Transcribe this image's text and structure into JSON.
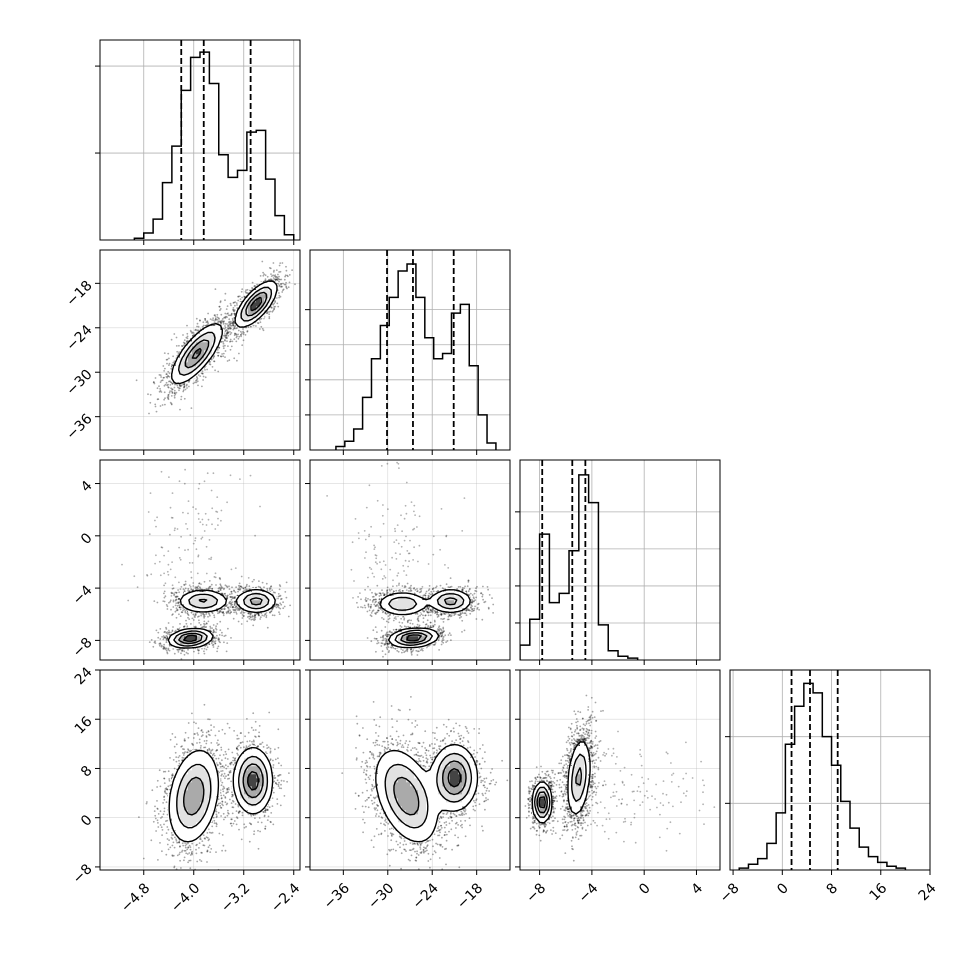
{
  "chart_data": {
    "type": "corner",
    "grid": true,
    "colors": {
      "line": "#000000",
      "grid": "#b0b0b0",
      "points": "#000000",
      "fill_dark": "#000000"
    },
    "parameters": [
      {
        "range": [
          -5.5,
          -2.3
        ],
        "ticks": [
          -4.8,
          -4.0,
          -3.2,
          -2.4
        ],
        "tick_labels": [
          "−4.8",
          "−4.0",
          "−3.2",
          "−2.4"
        ],
        "quantiles": [
          -4.2,
          -3.84,
          -3.09
        ],
        "histogram": {
          "edges": [
            -4.95,
            -4.8,
            -4.65,
            -4.5,
            -4.35,
            -4.2,
            -4.05,
            -3.9,
            -3.75,
            -3.6,
            -3.45,
            -3.3,
            -3.15,
            -3.0,
            -2.85,
            -2.7,
            -2.55,
            -2.4
          ],
          "counts": [
            0.01,
            0.04,
            0.12,
            0.33,
            0.54,
            0.86,
            1.05,
            1.08,
            0.9,
            0.49,
            0.36,
            0.4,
            0.62,
            0.63,
            0.35,
            0.14,
            0.03
          ]
        },
        "hist_ylim": [
          0,
          1.15
        ],
        "hist_yticks": [
          0.5,
          1.0
        ]
      },
      {
        "range": [
          -40.5,
          -13.5
        ],
        "ticks": [
          -36,
          -30,
          -24,
          -18
        ],
        "tick_labels": [
          "−36",
          "−30",
          "−24",
          "−18"
        ],
        "quantiles": [
          -30.1,
          -26.6,
          -21.1
        ],
        "histogram": {
          "edges": [
            -37,
            -35.8,
            -34.6,
            -33.4,
            -32.2,
            -31,
            -29.8,
            -28.6,
            -27.4,
            -26.2,
            -25,
            -23.8,
            -22.6,
            -21.4,
            -20.2,
            -19,
            -17.8,
            -16.6,
            -15.4
          ],
          "counts": [
            0.02,
            0.05,
            0.12,
            0.3,
            0.52,
            0.71,
            0.87,
            1.02,
            1.06,
            0.87,
            0.64,
            0.52,
            0.55,
            0.78,
            0.83,
            0.48,
            0.2,
            0.04
          ]
        },
        "hist_ylim": [
          0,
          1.14
        ],
        "hist_yticks": [
          0.2,
          0.4,
          0.6,
          0.8
        ]
      },
      {
        "range": [
          -9.5,
          5.8
        ],
        "ticks": [
          -8,
          -4,
          0,
          4
        ],
        "tick_labels": [
          "−8",
          "−4",
          "0",
          "4"
        ],
        "quantiles": [
          -7.8,
          -5.5,
          -4.5
        ],
        "histogram": {
          "edges": [
            -9.5,
            -8.75,
            -8.0,
            -7.25,
            -6.5,
            -5.75,
            -5.0,
            -4.25,
            -3.5,
            -2.75,
            -2.0,
            -1.25,
            -0.5
          ],
          "counts": [
            0.08,
            0.22,
            0.68,
            0.31,
            0.36,
            0.59,
            1.0,
            0.85,
            0.19,
            0.05,
            0.02,
            0.01
          ]
        },
        "hist_ylim": [
          0,
          1.08
        ],
        "hist_yticks": [
          0.2,
          0.4,
          0.6,
          0.8
        ]
      },
      {
        "range": [
          -8.5,
          24
        ],
        "ticks": [
          -8,
          0,
          8,
          16,
          24
        ],
        "tick_labels": [
          "−8",
          "0",
          "8",
          "16",
          "24"
        ],
        "quantiles": [
          1.5,
          4.5,
          9.0
        ],
        "histogram": {
          "edges": [
            -7,
            -5.5,
            -4,
            -2.5,
            -1,
            0.5,
            2,
            3.5,
            5,
            6.5,
            8,
            9.5,
            11,
            12.5,
            14,
            15.5,
            17,
            18.5,
            20
          ],
          "counts": [
            0.01,
            0.03,
            0.06,
            0.14,
            0.3,
            0.66,
            0.86,
            0.98,
            0.93,
            0.7,
            0.55,
            0.36,
            0.22,
            0.12,
            0.07,
            0.04,
            0.02,
            0.01
          ]
        },
        "hist_ylim": [
          0,
          1.05
        ],
        "hist_yticks": [
          0.35,
          0.7
        ]
      }
    ],
    "pairs": [
      {
        "row": 1,
        "col": 0,
        "modes": [
          {
            "mx": -3.95,
            "my": -27.5,
            "sx": 0.2,
            "sy": 2.0,
            "rho": 0.75,
            "w": 0.58
          },
          {
            "mx": -3.0,
            "my": -20.8,
            "sx": 0.16,
            "sy": 1.5,
            "rho": 0.7,
            "w": 0.42
          }
        ]
      },
      {
        "row": 2,
        "col": 0,
        "modes": [
          {
            "mx": -3.85,
            "my": -5.0,
            "sx": 0.2,
            "sy": 0.45,
            "rho": 0.0,
            "w": 0.33
          },
          {
            "mx": -3.0,
            "my": -5.0,
            "sx": 0.16,
            "sy": 0.45,
            "rho": 0.0,
            "w": 0.3
          },
          {
            "mx": -4.05,
            "my": -7.85,
            "sx": 0.17,
            "sy": 0.35,
            "rho": 0.2,
            "w": 0.37
          }
        ]
      },
      {
        "row": 2,
        "col": 1,
        "modes": [
          {
            "mx": -28.0,
            "my": -5.2,
            "sx": 1.7,
            "sy": 0.45,
            "rho": 0.0,
            "w": 0.3
          },
          {
            "mx": -21.5,
            "my": -5.0,
            "sx": 1.4,
            "sy": 0.45,
            "rho": 0.0,
            "w": 0.3
          },
          {
            "mx": -26.5,
            "my": -7.8,
            "sx": 1.6,
            "sy": 0.35,
            "rho": 0.2,
            "w": 0.4
          }
        ]
      },
      {
        "row": 3,
        "col": 0,
        "modes": [
          {
            "mx": -4.0,
            "my": 3.5,
            "sx": 0.2,
            "sy": 3.8,
            "rho": 0.25,
            "w": 0.6
          },
          {
            "mx": -3.05,
            "my": 6.0,
            "sx": 0.15,
            "sy": 2.6,
            "rho": 0.0,
            "w": 0.4
          }
        ]
      },
      {
        "row": 3,
        "col": 1,
        "modes": [
          {
            "mx": -27.5,
            "my": 3.5,
            "sx": 2.1,
            "sy": 3.8,
            "rho": -0.4,
            "w": 0.6
          },
          {
            "mx": -21.0,
            "my": 6.5,
            "sx": 1.5,
            "sy": 2.6,
            "rho": 0.0,
            "w": 0.4
          }
        ]
      },
      {
        "row": 3,
        "col": 2,
        "modes": [
          {
            "mx": -7.8,
            "my": 2.5,
            "sx": 0.35,
            "sy": 1.6,
            "rho": 0.0,
            "w": 0.4
          },
          {
            "mx": -5.0,
            "my": 6.5,
            "sx": 0.45,
            "sy": 3.2,
            "rho": 0.3,
            "w": 0.6
          }
        ]
      }
    ],
    "outlier_cloud": {
      "x_param": 2,
      "center": -5.0,
      "spread_x": 2.0,
      "spread_y_factor": 0.6,
      "extra_y": 3.0,
      "fraction": 0.05
    }
  }
}
